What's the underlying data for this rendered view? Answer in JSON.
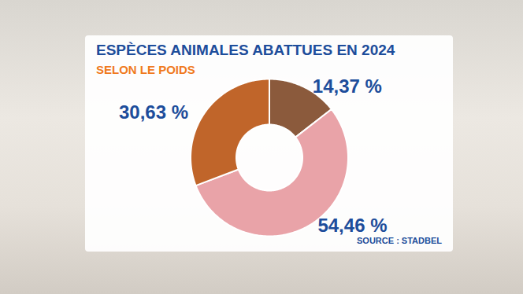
{
  "chart_data": {
    "type": "donut",
    "title": "ESPÈCES ANIMALES ABATTUES EN 2024",
    "subtitle": "SELON LE POIDS",
    "source": "SOURCE : STADBEL",
    "values": [
      14.37,
      54.46,
      30.63
    ],
    "value_labels": [
      "14,37 %",
      "54,46 %",
      "30,63 %"
    ],
    "colors": [
      "#8b5a3c",
      "#e9a3a8",
      "#c0652a"
    ],
    "data_labels": true
  }
}
